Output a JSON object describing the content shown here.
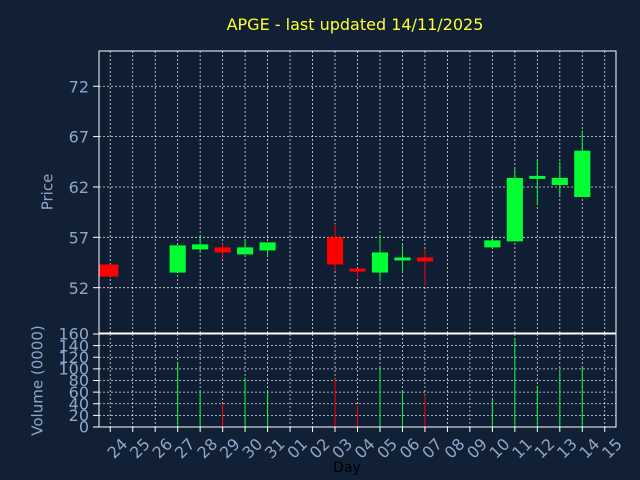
{
  "colors": {
    "background": "#112035",
    "plot_bg": "#0f1e33",
    "frame": "#ffffff",
    "grid": "#ffffff",
    "up": "#00ff33",
    "down": "#ff0000",
    "title": "#ffff33",
    "tick_text": "#8ea6c8"
  },
  "chart_data": [
    {
      "type": "candlestick",
      "title": "APGE - last updated 14/11/2025",
      "ylabel": "Price",
      "ylim": [
        47.5,
        75.5
      ],
      "yticks": [
        52,
        57,
        62,
        67,
        72
      ],
      "grid": true,
      "x_labels": [
        "24",
        "25",
        "26",
        "27",
        "28",
        "29",
        "30",
        "31",
        "01",
        "02",
        "03",
        "04",
        "05",
        "06",
        "07",
        "08",
        "09",
        "10",
        "11",
        "12",
        "13",
        "14",
        "15"
      ],
      "candles": [
        {
          "x": "24",
          "open": 54.3,
          "high": 54.3,
          "low": 53.1,
          "close": 53.1
        },
        {
          "x": "27",
          "open": 53.5,
          "high": 56.2,
          "low": 53.5,
          "close": 56.2
        },
        {
          "x": "28",
          "open": 55.8,
          "high": 57.0,
          "low": 55.5,
          "close": 56.3
        },
        {
          "x": "29",
          "open": 56.0,
          "high": 56.4,
          "low": 54.9,
          "close": 55.5
        },
        {
          "x": "30",
          "open": 55.3,
          "high": 56.7,
          "low": 55.3,
          "close": 56.0
        },
        {
          "x": "31",
          "open": 55.7,
          "high": 56.5,
          "low": 55.1,
          "close": 56.5
        },
        {
          "x": "03",
          "open": 57.0,
          "high": 58.3,
          "low": 53.7,
          "close": 54.3
        },
        {
          "x": "04",
          "open": 53.9,
          "high": 53.9,
          "low": 53.0,
          "close": 53.8
        },
        {
          "x": "05",
          "open": 53.5,
          "high": 57.2,
          "low": 52.6,
          "close": 55.5
        },
        {
          "x": "06",
          "open": 54.8,
          "high": 56.2,
          "low": 53.5,
          "close": 55.0
        },
        {
          "x": "07",
          "open": 55.0,
          "high": 55.8,
          "low": 52.2,
          "close": 54.6
        },
        {
          "x": "10",
          "open": 56.0,
          "high": 56.9,
          "low": 56.0,
          "close": 56.7
        },
        {
          "x": "11",
          "open": 56.6,
          "high": 63.8,
          "low": 56.6,
          "close": 62.9
        },
        {
          "x": "12",
          "open": 62.9,
          "high": 64.8,
          "low": 60.2,
          "close": 63.1
        },
        {
          "x": "13",
          "open": 62.2,
          "high": 64.5,
          "low": 61.2,
          "close": 62.9
        },
        {
          "x": "14",
          "open": 61.0,
          "high": 67.6,
          "low": 61.0,
          "close": 65.6
        }
      ]
    },
    {
      "type": "bar",
      "ylabel": "Volume (0000)",
      "xlabel": "Day",
      "ylim": [
        0,
        160
      ],
      "yticks": [
        0,
        20,
        40,
        60,
        80,
        100,
        120,
        140,
        160
      ],
      "grid": true,
      "categories": [
        "24",
        "27",
        "28",
        "29",
        "30",
        "31",
        "03",
        "04",
        "05",
        "06",
        "07",
        "10",
        "11",
        "12",
        "13",
        "14"
      ],
      "values": [
        0,
        112,
        62,
        40,
        85,
        62,
        83,
        37,
        103,
        63,
        55,
        47,
        152,
        70,
        95,
        103
      ],
      "directions": [
        "down",
        "up",
        "up",
        "down",
        "up",
        "up",
        "down",
        "down",
        "up",
        "up",
        "down",
        "up",
        "up",
        "up",
        "up",
        "up"
      ]
    }
  ]
}
